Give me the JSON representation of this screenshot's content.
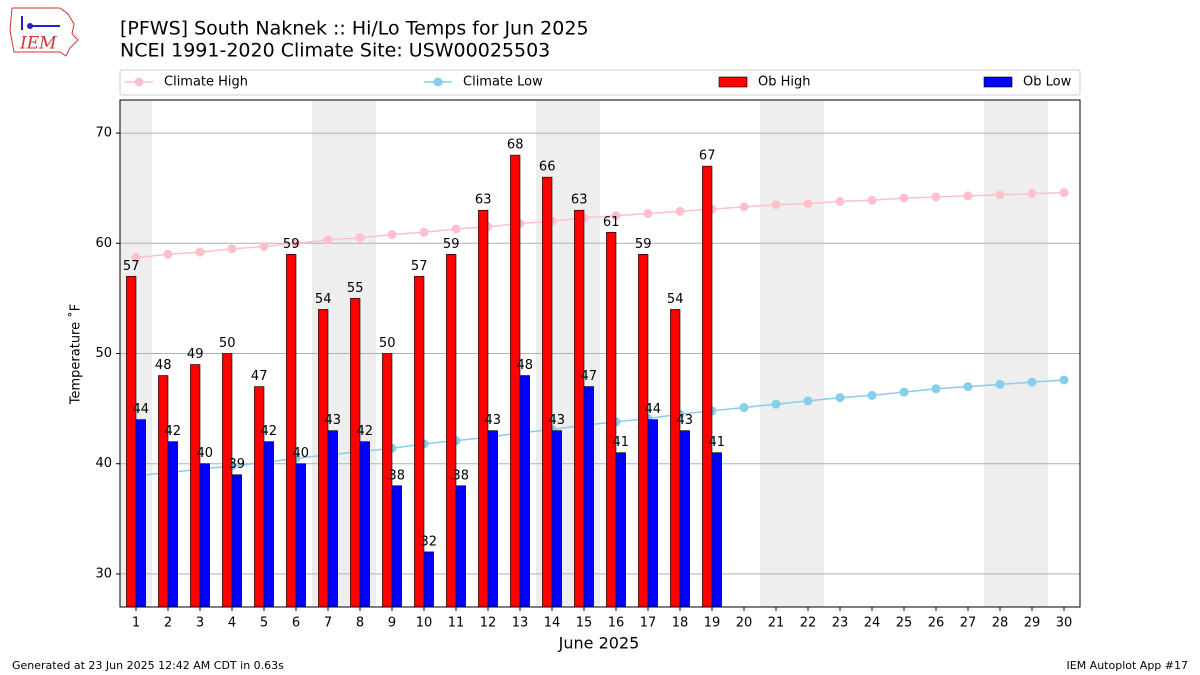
{
  "chart_data": {
    "type": "bar",
    "title": "[PFWS] South Naknek :: Hi/Lo Temps for Jun 2025",
    "subtitle": "NCEI 1991-2020 Climate Site: USW00025503",
    "x_label": "June 2025",
    "y_label": "Temperature ˚F",
    "x": [
      1,
      2,
      3,
      4,
      5,
      6,
      7,
      8,
      9,
      10,
      11,
      12,
      13,
      14,
      15,
      16,
      17,
      18,
      19,
      20,
      21,
      22,
      23,
      24,
      25,
      26,
      27,
      28,
      29,
      30
    ],
    "xlim": [
      0.5,
      30.5
    ],
    "xticks": [
      1,
      2,
      3,
      4,
      5,
      6,
      7,
      8,
      9,
      10,
      11,
      12,
      13,
      14,
      15,
      16,
      17,
      18,
      19,
      20,
      21,
      22,
      23,
      24,
      25,
      26,
      27,
      28,
      29,
      30
    ],
    "ylim": [
      27,
      73
    ],
    "yticks": [
      30,
      40,
      50,
      60,
      70
    ],
    "grid": true,
    "shaded_days": [
      1,
      7,
      8,
      14,
      15,
      21,
      22,
      28,
      29
    ],
    "series": [
      {
        "name": "Climate High",
        "type": "line",
        "color": "#ffc0cb",
        "values": [
          58.7,
          59.0,
          59.2,
          59.5,
          59.7,
          60.0,
          60.3,
          60.5,
          60.8,
          61.0,
          61.3,
          61.5,
          61.8,
          62.0,
          62.3,
          62.5,
          62.7,
          62.9,
          63.1,
          63.3,
          63.5,
          63.6,
          63.8,
          63.9,
          64.1,
          64.2,
          64.3,
          64.4,
          64.5,
          64.6
        ]
      },
      {
        "name": "Climate Low",
        "type": "line",
        "color": "#87ceeb",
        "values": [
          38.9,
          39.2,
          39.5,
          39.8,
          40.1,
          40.5,
          40.8,
          41.1,
          41.4,
          41.8,
          42.1,
          42.4,
          42.8,
          43.1,
          43.5,
          43.8,
          44.1,
          44.5,
          44.8,
          45.1,
          45.4,
          45.7,
          46.0,
          46.2,
          46.5,
          46.8,
          47.0,
          47.2,
          47.4,
          47.6
        ]
      },
      {
        "name": "Ob High",
        "type": "bar",
        "color": "#ff0000",
        "values": [
          57,
          48,
          49,
          50,
          47,
          59,
          54,
          55,
          50,
          57,
          59,
          63,
          68,
          66,
          63,
          61,
          59,
          54,
          67,
          null,
          null,
          null,
          null,
          null,
          null,
          null,
          null,
          null,
          null,
          null
        ]
      },
      {
        "name": "Ob Low",
        "type": "bar",
        "color": "#0000ff",
        "values": [
          44,
          42,
          40,
          39,
          42,
          40,
          43,
          42,
          38,
          32,
          38,
          43,
          48,
          43,
          47,
          41,
          44,
          43,
          41,
          null,
          null,
          null,
          null,
          null,
          null,
          null,
          null,
          null,
          null,
          null
        ]
      }
    ],
    "footer_left": "Generated at 23 Jun 2025 12:42 AM CDT in 0.63s",
    "footer_right": "IEM Autoplot App #17",
    "logo": "IEM"
  }
}
